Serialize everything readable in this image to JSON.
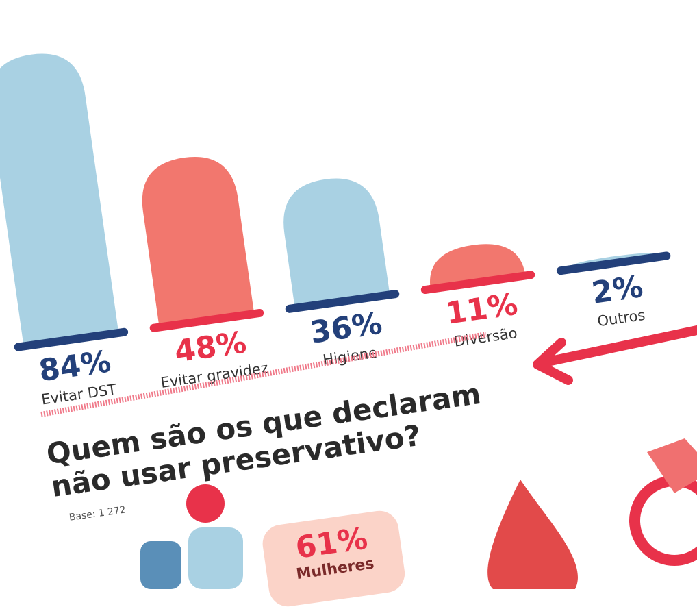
{
  "chart_data": [
    {
      "type": "bar",
      "categories": [
        "Evitar DST",
        "Evitar gravidez",
        "Higiene",
        "Diversão",
        "Outros"
      ],
      "values": [
        84,
        48,
        36,
        11,
        2
      ],
      "value_labels": [
        "84%",
        "48%",
        "36%",
        "11%",
        "2%"
      ],
      "colors": [
        "#a9d1e3",
        "#f2776e",
        "#a9d1e3",
        "#f2776e",
        "#a9d1e3"
      ],
      "label_colors": [
        "#23407a",
        "#e8324a",
        "#23407a",
        "#e8324a",
        "#23407a"
      ],
      "ylim": [
        0,
        100
      ]
    },
    {
      "type": "stat",
      "title": "Quem são os que declaram não usar preservativo?",
      "subtitle": "Base: 1 272",
      "categories": [
        "Mulheres"
      ],
      "values": [
        61
      ],
      "value_labels": [
        "61%"
      ]
    }
  ]
}
